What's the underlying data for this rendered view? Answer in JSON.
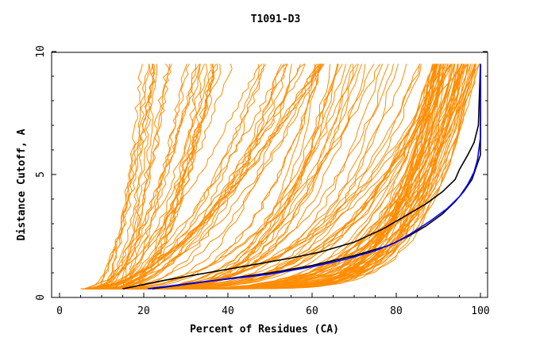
{
  "chart_data": {
    "type": "line",
    "title": "T1091-D3",
    "xlabel": "Percent of Residues (CA)",
    "ylabel": "Distance Cutoff, A",
    "xlim": [
      0,
      100
    ],
    "ylim": [
      0,
      10
    ],
    "x_ticks": [
      "0",
      "20",
      "40",
      "60",
      "80",
      "100"
    ],
    "y_ticks": [
      "0",
      "5",
      "10"
    ],
    "grid": false,
    "legend": "none",
    "colors": {
      "background_curves": "#ff8c00",
      "highlight_black": "#000000",
      "highlight_blue": "#0000ff",
      "axes": "#000000"
    },
    "highlight_series": [
      {
        "color": "#000000",
        "x": [
          15,
          25,
          35,
          45,
          55,
          62,
          70,
          77,
          82,
          87,
          91,
          94,
          95,
          97,
          98.5,
          99.5,
          100
        ],
        "y": [
          0.35,
          0.7,
          1.0,
          1.3,
          1.6,
          1.85,
          2.25,
          2.8,
          3.3,
          3.8,
          4.3,
          4.8,
          5.2,
          5.8,
          6.3,
          7.0,
          9.5
        ]
      },
      {
        "color": "#000000",
        "x": [
          22,
          35,
          50,
          60,
          70,
          78,
          83,
          87,
          91,
          94,
          96,
          98,
          99,
          100,
          100
        ],
        "y": [
          0.35,
          0.65,
          1.0,
          1.3,
          1.7,
          2.1,
          2.5,
          2.9,
          3.4,
          3.9,
          4.3,
          4.8,
          5.3,
          5.8,
          9.5
        ]
      },
      {
        "color": "#0000ff",
        "x": [
          21,
          30,
          40,
          50,
          60,
          68,
          75,
          80,
          84,
          88,
          92,
          95,
          97,
          98.5,
          99.3,
          100,
          100
        ],
        "y": [
          0.35,
          0.55,
          0.75,
          0.95,
          1.25,
          1.55,
          1.9,
          2.25,
          2.65,
          3.1,
          3.6,
          4.1,
          4.6,
          5.1,
          5.6,
          6.5,
          9.5
        ]
      }
    ],
    "background_series_count": 140
  }
}
